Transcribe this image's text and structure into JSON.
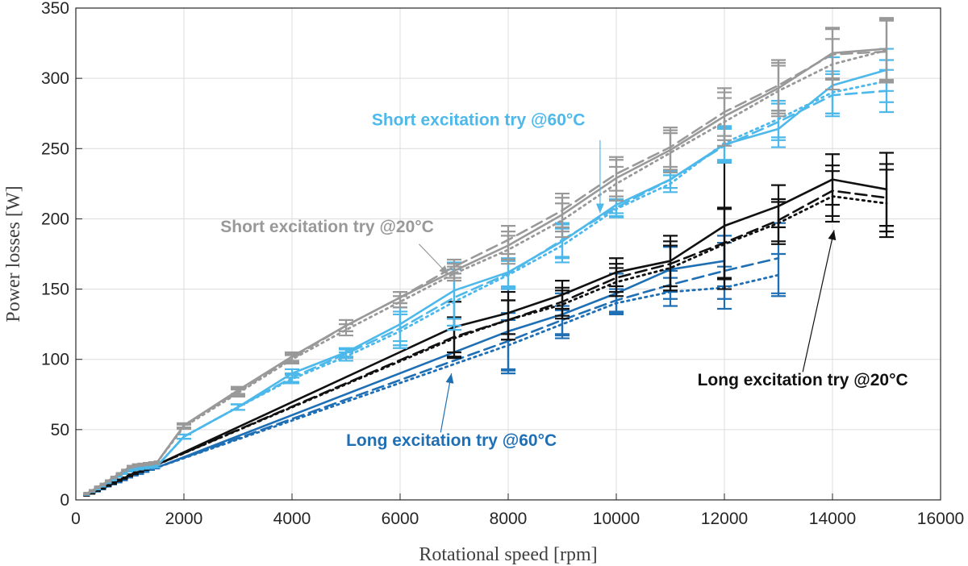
{
  "chart_data": {
    "type": "line",
    "xlabel": "Rotational speed [rpm]",
    "ylabel": "Power losses [W]",
    "xlim": [
      0,
      16000
    ],
    "ylim": [
      0,
      350
    ],
    "xticks": [
      "0",
      "2000",
      "4000",
      "6000",
      "8000",
      "10000",
      "12000",
      "14000",
      "16000"
    ],
    "yticks": [
      "0",
      "50",
      "100",
      "150",
      "200",
      "250",
      "300",
      "350"
    ],
    "grid": true,
    "colors": {
      "short_20": "#999999",
      "short_60": "#4db8ea",
      "long_20": "#111111",
      "long_60": "#1f6fb5"
    },
    "series": [
      {
        "group": "short_20",
        "style": "solid",
        "x": [
          200,
          300,
          400,
          500,
          600,
          700,
          800,
          900,
          1000,
          1100,
          1200,
          1300,
          1400,
          1500,
          2000,
          3000,
          4000,
          5000,
          6000,
          7000,
          8000,
          9000,
          10000,
          11000,
          12000,
          13000,
          14000,
          15000
        ],
        "y": [
          4.5,
          6.5,
          9,
          11,
          13.5,
          16,
          18.5,
          21,
          23.5,
          24.5,
          25,
          25.5,
          26,
          26.5,
          53,
          78,
          102,
          124,
          144,
          163,
          181,
          203,
          229,
          249,
          273,
          293,
          318,
          321
        ],
        "err": [
          0.5,
          0.5,
          0.5,
          0.5,
          0.5,
          0.5,
          0.5,
          0.5,
          0.8,
          0.8,
          0.8,
          0.8,
          0.8,
          0.8,
          1.5,
          2.5,
          3,
          4,
          4,
          5,
          10,
          12,
          13,
          14,
          17,
          18,
          18,
          22
        ]
      },
      {
        "group": "short_20",
        "style": "dashed",
        "x": [
          200,
          300,
          400,
          500,
          600,
          700,
          800,
          900,
          1000,
          1100,
          1200,
          1300,
          1400,
          1500,
          2000,
          3000,
          4000,
          5000,
          6000,
          7000,
          8000,
          9000,
          10000,
          11000,
          12000,
          13000,
          14000,
          15000
        ],
        "y": [
          4.5,
          6.5,
          9,
          11,
          13.5,
          16,
          18.5,
          21,
          23.5,
          24.5,
          25,
          25.5,
          26,
          26.5,
          53,
          77,
          101,
          124,
          144,
          166,
          185,
          206,
          232,
          251,
          276,
          295,
          317,
          319
        ],
        "err": [
          0.5,
          0.5,
          0.5,
          0.5,
          0.5,
          0.5,
          0.5,
          0.5,
          0.8,
          0.8,
          0.8,
          0.8,
          0.8,
          0.8,
          1.5,
          2.5,
          3,
          4,
          4,
          5,
          10,
          12,
          12,
          14,
          17,
          18,
          18,
          22
        ]
      },
      {
        "group": "short_20",
        "style": "dotted",
        "x": [
          200,
          300,
          400,
          500,
          600,
          700,
          800,
          900,
          1000,
          1100,
          1200,
          1300,
          1400,
          1500,
          2000,
          3000,
          4000,
          5000,
          6000,
          7000,
          8000,
          9000,
          10000,
          11000,
          12000,
          13000,
          14000,
          15000
        ],
        "y": [
          4.5,
          6.5,
          9,
          11,
          13.5,
          16,
          18.5,
          21,
          23.5,
          24.5,
          25,
          25.5,
          26,
          26.5,
          52,
          76,
          100,
          121,
          141,
          161,
          178,
          199,
          225,
          247,
          269,
          291,
          310,
          320
        ],
        "err": [
          0.5,
          0.5,
          0.5,
          0.5,
          0.5,
          0.5,
          0.5,
          0.5,
          0.8,
          0.8,
          0.8,
          0.8,
          0.8,
          0.8,
          1.5,
          2.5,
          3,
          4,
          4,
          5,
          10,
          12,
          12,
          14,
          17,
          18,
          18,
          22
        ]
      },
      {
        "group": "short_60",
        "style": "solid",
        "x": [
          200,
          300,
          400,
          500,
          600,
          700,
          800,
          900,
          1000,
          1100,
          1200,
          1300,
          1400,
          1500,
          2000,
          3000,
          4000,
          5000,
          6000,
          7000,
          8000,
          9000,
          10000,
          11000,
          12000,
          13000,
          14000,
          15000
        ],
        "y": [
          4,
          6,
          8,
          10,
          12.5,
          14.5,
          17,
          19,
          21,
          22,
          22.5,
          23,
          23.5,
          24,
          45,
          66,
          90,
          105,
          125,
          149,
          162,
          184,
          210,
          228,
          253,
          264,
          295,
          306
        ],
        "err": [
          0.5,
          0.5,
          0.5,
          0.5,
          0.5,
          0.5,
          0.5,
          0.5,
          0.8,
          0.8,
          0.8,
          0.8,
          0.8,
          0.8,
          1.5,
          2,
          3,
          3,
          12,
          20,
          10,
          12,
          6,
          6,
          12,
          13,
          20,
          15
        ]
      },
      {
        "group": "short_60",
        "style": "dashed",
        "x": [
          200,
          300,
          400,
          500,
          600,
          700,
          800,
          900,
          1000,
          1100,
          1200,
          1300,
          1400,
          1500,
          2000,
          3000,
          4000,
          5000,
          6000,
          7000,
          8000,
          9000,
          10000,
          11000,
          12000,
          13000,
          14000,
          15000
        ],
        "y": [
          4,
          6,
          8,
          10,
          12.5,
          14.5,
          17,
          19,
          21,
          22,
          22.5,
          23,
          23.5,
          24,
          45,
          66,
          87,
          104,
          122,
          144,
          161,
          185,
          208,
          228,
          252,
          269,
          288,
          291
        ],
        "err": [
          0.5,
          0.5,
          0.5,
          0.5,
          0.5,
          0.5,
          0.5,
          0.5,
          0.8,
          0.8,
          0.8,
          0.8,
          0.8,
          0.8,
          1.5,
          2,
          3,
          3,
          12,
          20,
          10,
          12,
          6,
          6,
          12,
          13,
          15,
          15
        ]
      },
      {
        "group": "short_60",
        "style": "dotted",
        "x": [
          200,
          300,
          400,
          500,
          600,
          700,
          800,
          900,
          1000,
          1100,
          1200,
          1300,
          1400,
          1500,
          2000,
          3000,
          4000,
          5000,
          6000,
          7000,
          8000,
          9000,
          10000,
          11000,
          12000,
          13000,
          14000,
          15000
        ],
        "y": [
          4,
          6,
          8,
          10,
          12.5,
          14.5,
          17,
          19,
          21,
          22,
          22.5,
          23,
          23.5,
          24,
          45,
          66,
          86,
          102,
          120,
          141,
          160,
          181,
          207,
          225,
          254,
          271,
          290,
          298
        ],
        "err": [
          0.5,
          0.5,
          0.5,
          0.5,
          0.5,
          0.5,
          0.5,
          0.5,
          0.8,
          0.8,
          0.8,
          0.8,
          0.8,
          0.8,
          1.5,
          2,
          3,
          3,
          12,
          20,
          10,
          12,
          6,
          6,
          12,
          13,
          15,
          15
        ]
      },
      {
        "group": "long_20",
        "style": "solid",
        "x": [
          200,
          300,
          400,
          500,
          600,
          700,
          800,
          900,
          1000,
          1100,
          1200,
          1300,
          1400,
          1500,
          7000,
          8000,
          9000,
          10000,
          11000,
          12000,
          13000,
          14000,
          15000
        ],
        "y": [
          3.5,
          5,
          7,
          8.5,
          10.5,
          12,
          14,
          15.5,
          17.5,
          19,
          20.5,
          22,
          23.5,
          25,
          123,
          133,
          146,
          162,
          170,
          195,
          209,
          228,
          221
        ],
        "err": [
          0.5,
          0.5,
          0.5,
          0.5,
          0.5,
          0.5,
          0.5,
          0.5,
          0.6,
          0.6,
          0.6,
          0.6,
          0.6,
          0.6,
          18,
          15,
          10,
          10,
          18,
          45,
          15,
          18,
          26
        ]
      },
      {
        "group": "long_20",
        "style": "dashed",
        "x": [
          200,
          300,
          400,
          500,
          600,
          700,
          800,
          900,
          1000,
          1100,
          1200,
          1300,
          1400,
          1500,
          7000,
          8000,
          9000,
          10000,
          11000,
          12000,
          13000,
          14000,
          15000
        ],
        "y": [
          3.5,
          5,
          7,
          8.5,
          10.5,
          12,
          14,
          15.5,
          17.5,
          19,
          20.5,
          22,
          23.5,
          25,
          116,
          128,
          141,
          158,
          168,
          183,
          199,
          220,
          215
        ],
        "err": [
          0.5,
          0.5,
          0.5,
          0.5,
          0.5,
          0.5,
          0.5,
          0.5,
          0.6,
          0.6,
          0.6,
          0.6,
          0.6,
          0.6,
          14,
          14,
          10,
          10,
          16,
          25,
          15,
          18,
          24
        ]
      },
      {
        "group": "long_20",
        "style": "dotted",
        "x": [
          200,
          300,
          400,
          500,
          600,
          700,
          800,
          900,
          1000,
          1100,
          1200,
          1300,
          1400,
          1500,
          7000,
          8000,
          9000,
          10000,
          11000,
          12000,
          13000,
          14000,
          15000
        ],
        "y": [
          3.5,
          5,
          7,
          8.5,
          10.5,
          12,
          14,
          15.5,
          17.5,
          19,
          20.5,
          22,
          23.5,
          25,
          115,
          128,
          139,
          155,
          165,
          182,
          197,
          216,
          211
        ],
        "err": [
          0.5,
          0.5,
          0.5,
          0.5,
          0.5,
          0.5,
          0.5,
          0.5,
          0.6,
          0.6,
          0.6,
          0.6,
          0.6,
          0.6,
          14,
          14,
          10,
          10,
          16,
          25,
          15,
          18,
          24
        ]
      },
      {
        "group": "long_60",
        "style": "solid",
        "x": [
          200,
          300,
          400,
          500,
          600,
          700,
          800,
          900,
          1000,
          1100,
          1200,
          1300,
          1400,
          1500,
          8000,
          9000,
          10000,
          11000,
          12000
        ],
        "y": [
          3.5,
          5,
          6.5,
          8,
          10,
          11.5,
          13,
          14.5,
          16.5,
          18,
          19,
          20.5,
          22,
          23,
          120,
          132,
          147,
          164,
          170
        ],
        "err": [
          0.5,
          0.5,
          0.5,
          0.5,
          0.5,
          0.5,
          0.5,
          0.5,
          0.6,
          0.6,
          0.6,
          0.6,
          0.6,
          0.6,
          30,
          15,
          14,
          16,
          18
        ]
      },
      {
        "group": "long_60",
        "style": "dashed",
        "x": [
          200,
          300,
          400,
          500,
          600,
          700,
          800,
          900,
          1000,
          1100,
          1200,
          1300,
          1400,
          1500,
          8000,
          9000,
          10000,
          11000,
          12000,
          13000
        ],
        "y": [
          3.5,
          5,
          6.5,
          8,
          10,
          11.5,
          13,
          14.5,
          16.5,
          18,
          19,
          20.5,
          22,
          23,
          113,
          128,
          142,
          153,
          163,
          172
        ],
        "err": [
          0.5,
          0.5,
          0.5,
          0.5,
          0.5,
          0.5,
          0.5,
          0.5,
          0.6,
          0.6,
          0.6,
          0.6,
          0.6,
          0.6,
          20,
          10,
          8,
          10,
          20,
          25
        ]
      },
      {
        "group": "long_60",
        "style": "dotted",
        "x": [
          200,
          300,
          400,
          500,
          600,
          700,
          800,
          900,
          1000,
          1100,
          1200,
          1300,
          1400,
          1500,
          8000,
          9000,
          10000,
          11000,
          12000,
          13000
        ],
        "y": [
          3.5,
          5,
          6.5,
          8,
          10,
          11.5,
          13,
          14.5,
          16.5,
          18,
          19,
          20.5,
          22,
          23,
          110,
          125,
          140,
          148,
          151,
          160
        ],
        "err": [
          0.5,
          0.5,
          0.5,
          0.5,
          0.5,
          0.5,
          0.5,
          0.5,
          0.6,
          0.6,
          0.6,
          0.6,
          0.6,
          0.6,
          18,
          10,
          8,
          10,
          15,
          15
        ]
      }
    ],
    "annotations": [
      {
        "text": "Short excitation try @60°C",
        "group": "short_60",
        "text_at": [
          7450,
          266.5
        ],
        "arrow_from": [
          9700,
          256
        ],
        "arrow_to": [
          9700,
          204
        ]
      },
      {
        "text": "Short excitation try @20°C",
        "group": "short_20",
        "text_at": [
          4650,
          190.5
        ],
        "arrow_from": [
          6350,
          182
        ],
        "arrow_to": [
          6900,
          160
        ]
      },
      {
        "text": "Long excitation try @20°C",
        "group": "long_20",
        "text_at": [
          13450,
          81.5
        ],
        "arrow_from": [
          13450,
          91
        ],
        "arrow_to": [
          14030,
          192
        ]
      },
      {
        "text": "Long excitation try @60°C",
        "group": "long_60",
        "text_at": [
          6950,
          38.5
        ],
        "arrow_from": [
          6750,
          48
        ],
        "arrow_to": [
          6950,
          90
        ]
      }
    ]
  }
}
